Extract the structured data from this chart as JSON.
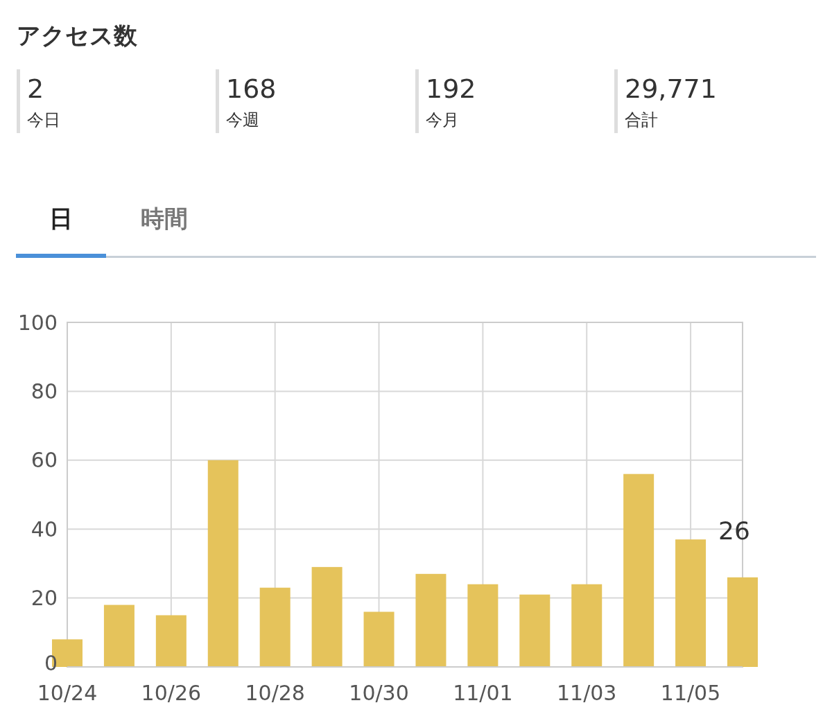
{
  "chart_data": {
    "type": "bar",
    "title": "アクセス数",
    "annotations": [
      "2",
      "今日",
      "168",
      "今週",
      "192",
      "今月",
      "29,771",
      "合計",
      "日",
      "時間"
    ],
    "x": [
      "--10-24",
      "--10-25",
      "--10-26",
      "--10-27",
      "--10-28",
      "--10-29",
      "--10-30",
      "--10-31",
      "--11-01",
      "--11-02",
      "--11-03",
      "--11-04",
      "--11-05",
      "--11-06"
    ],
    "values": [
      8,
      18,
      15,
      60,
      23,
      29,
      16,
      27,
      24,
      21,
      24,
      56,
      37,
      26
    ],
    "value_labels": [
      null,
      null,
      null,
      null,
      null,
      null,
      null,
      null,
      null,
      null,
      null,
      null,
      null,
      "26"
    ],
    "color": "#e5c35b",
    "xlim": [
      "--10-24",
      "--11-06"
    ],
    "xticks": [
      {
        "value": "--10-24",
        "label": "10/24"
      },
      {
        "value": "--10-26",
        "label": "10/26"
      },
      {
        "value": "--10-28",
        "label": "10/28"
      },
      {
        "value": "--10-30",
        "label": "10/30"
      },
      {
        "value": "--11-01",
        "label": "11/01"
      },
      {
        "value": "--11-03",
        "label": "11/03"
      },
      {
        "value": "--11-05",
        "label": "11/05"
      }
    ],
    "ylim": [
      0,
      100
    ],
    "yticks": [
      0,
      20,
      40,
      60,
      80,
      100
    ],
    "grid": true
  }
}
